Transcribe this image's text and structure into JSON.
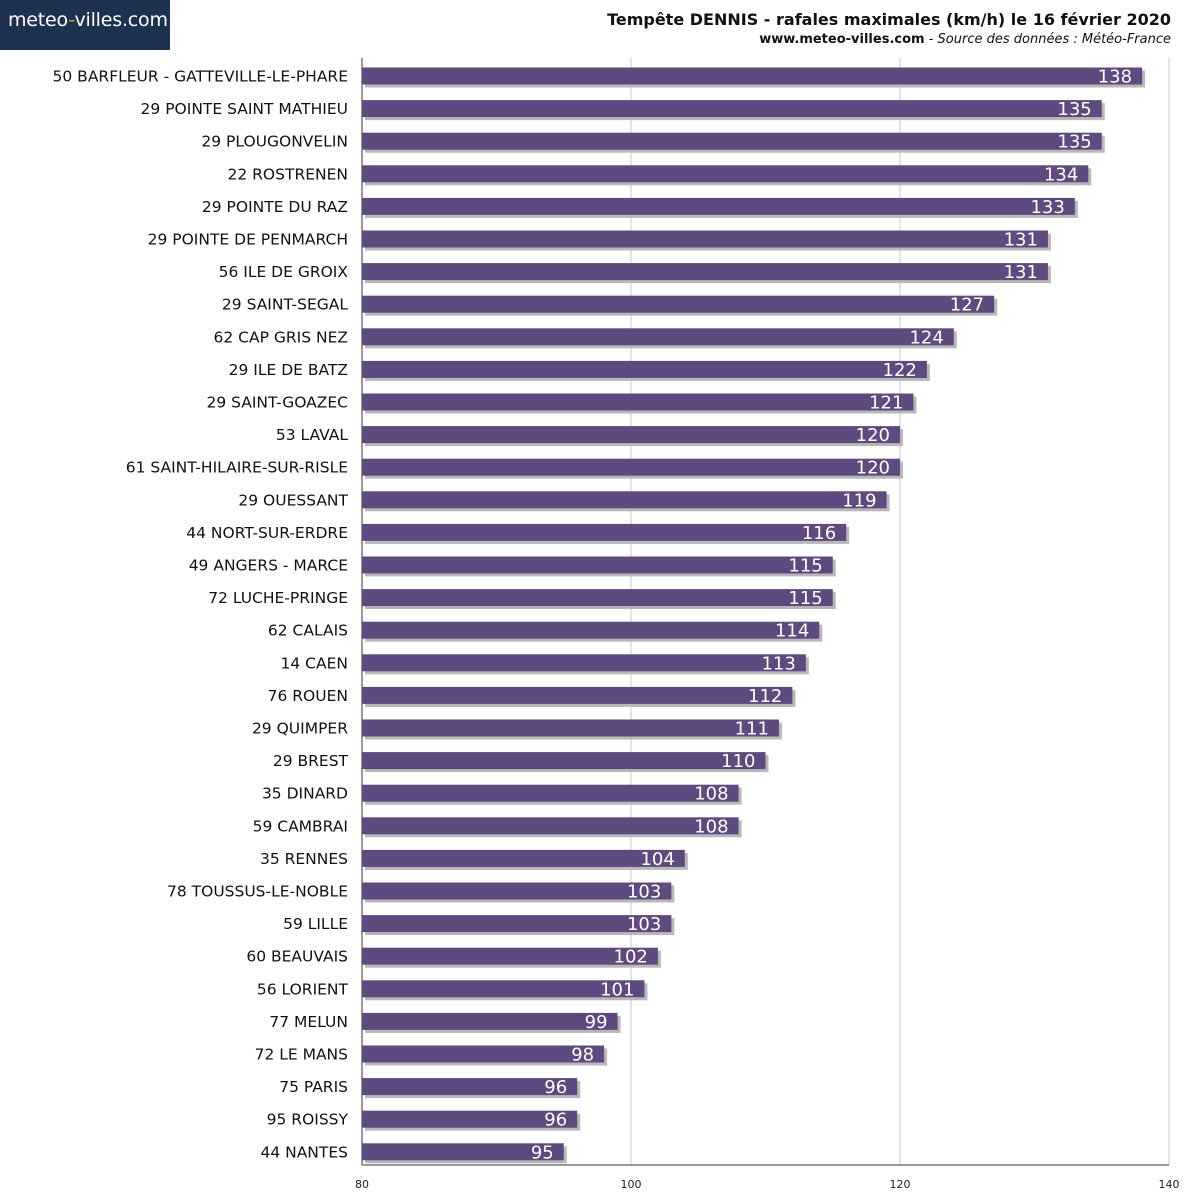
{
  "logo": {
    "part1": "meteo",
    "part2": "-",
    "part3": "villes.com"
  },
  "header": {
    "title": "Tempête DENNIS - rafales maximales (km/h) le 16 février 2020",
    "site": "www.meteo-villes.com",
    "separator": " - ",
    "source": "Source des données : Météo-France"
  },
  "colors": {
    "bar": "#5f4a7f",
    "bar_shadow": "#b8b8b8",
    "grid": "#c8c8c8",
    "axis": "#333333",
    "logo_bg": "#1e3150"
  },
  "chart_data": {
    "type": "bar",
    "orientation": "horizontal",
    "categories": [
      "50 BARFLEUR - GATTEVILLE-LE-PHARE",
      "29 POINTE SAINT MATHIEU",
      "29 PLOUGONVELIN",
      "22 ROSTRENEN",
      "29 POINTE DU RAZ",
      "29 POINTE DE PENMARCH",
      "56 ILE DE GROIX",
      "29 SAINT-SEGAL",
      "62 CAP GRIS NEZ",
      "29 ILE DE BATZ",
      "29 SAINT-GOAZEC",
      "53 LAVAL",
      "61 SAINT-HILAIRE-SUR-RISLE",
      "29 OUESSANT",
      "44 NORT-SUR-ERDRE",
      "49 ANGERS - MARCE",
      "72 LUCHE-PRINGE",
      "62 CALAIS",
      "14 CAEN",
      "76 ROUEN",
      "29 QUIMPER",
      "29 BREST",
      "35 DINARD",
      "59 CAMBRAI",
      "35 RENNES",
      "78 TOUSSUS-LE-NOBLE",
      "59 LILLE",
      "60 BEAUVAIS",
      "56 LORIENT",
      "77 MELUN",
      "72 LE MANS",
      "75 PARIS",
      "95 ROISSY",
      "44 NANTES"
    ],
    "values": [
      138,
      135,
      135,
      134,
      133,
      131,
      131,
      127,
      124,
      122,
      121,
      120,
      120,
      119,
      116,
      115,
      115,
      114,
      113,
      112,
      111,
      110,
      108,
      108,
      104,
      103,
      103,
      102,
      101,
      99,
      98,
      96,
      96,
      95
    ],
    "title": "Tempête DENNIS - rafales maximales (km/h) le 16 février 2020",
    "xlim": [
      80,
      140
    ],
    "xticks": [
      80,
      100,
      120,
      140
    ],
    "grid": true,
    "data_labels": true
  }
}
